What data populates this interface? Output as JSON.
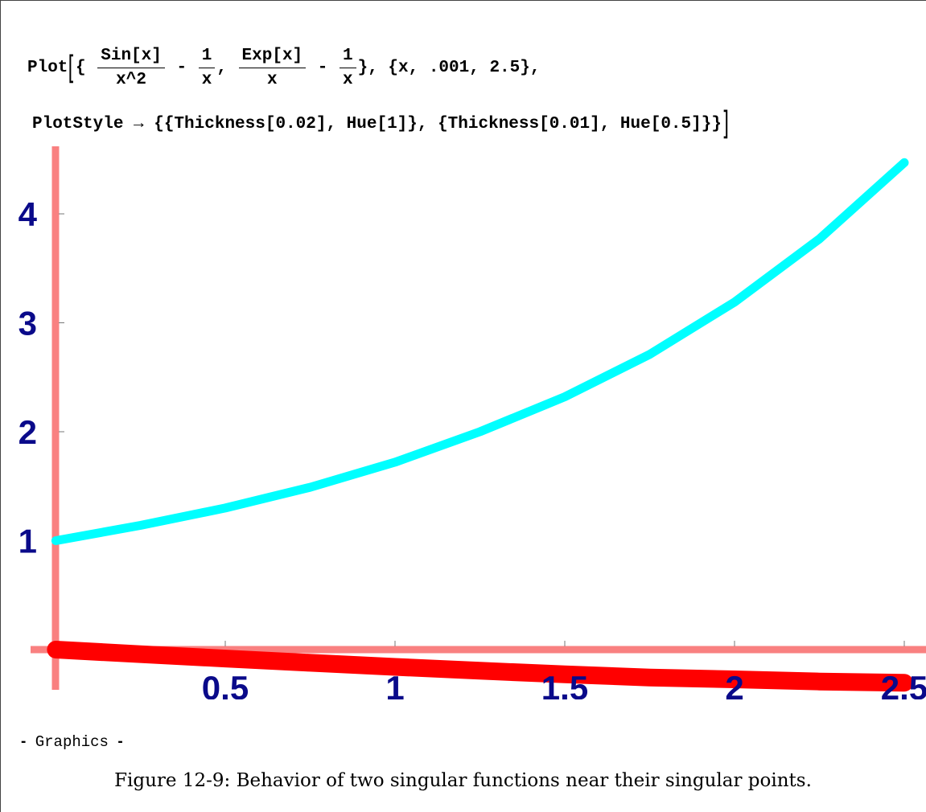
{
  "code": {
    "line1": {
      "head": "Plot",
      "frac1_num": "Sin[x]",
      "frac1_den": "x^2",
      "minus": "-",
      "frac2_num": "1",
      "frac2_den": "x",
      "comma": ",",
      "frac3_num": "Exp[x]",
      "frac3_den": "x",
      "frac4_num": "1",
      "frac4_den": "x",
      "range": "{x, .001, 2.5},"
    },
    "line2": "PlotStyle → {{Thickness[0.02], Hue[1]}, {Thickness[0.01], Hue[0.5]}}"
  },
  "output_label": "Graphics",
  "caption": "Figure 12-9: Behavior of two singular functions near their singular points.",
  "colors": {
    "axis": "#f98080",
    "series_sin": "#ff0000",
    "series_exp": "#00ffff",
    "tick_label": "#0a0a8a"
  },
  "chart_data": {
    "type": "line",
    "xlim": [
      0,
      2.5
    ],
    "ylim": [
      -0.35,
      4.5
    ],
    "x_ticks": [
      0.5,
      1,
      1.5,
      2,
      2.5
    ],
    "x_tick_labels": [
      "0.5",
      "1",
      "1.5",
      "2",
      "2.5"
    ],
    "y_ticks": [
      1,
      2,
      3,
      4
    ],
    "y_tick_labels": [
      "1",
      "2",
      "3",
      "4"
    ],
    "grid": false,
    "series": [
      {
        "color": "#ff0000",
        "thickness": 0.02,
        "x": [
          0.001,
          0.25,
          0.5,
          0.75,
          1.0,
          1.25,
          1.5,
          1.75,
          2.0,
          2.25,
          2.5
        ],
        "y": [
          0.0,
          -0.042,
          -0.082,
          -0.121,
          -0.159,
          -0.194,
          -0.227,
          -0.256,
          -0.273,
          -0.293,
          -0.304
        ]
      },
      {
        "color": "#00ffff",
        "thickness": 0.01,
        "x": [
          0.001,
          0.25,
          0.5,
          0.75,
          1.0,
          1.25,
          1.5,
          1.75,
          2.0,
          2.25,
          2.5
        ],
        "y": [
          1.0,
          1.14,
          1.3,
          1.49,
          1.72,
          2.0,
          2.32,
          2.71,
          3.19,
          3.77,
          4.47
        ]
      }
    ]
  }
}
